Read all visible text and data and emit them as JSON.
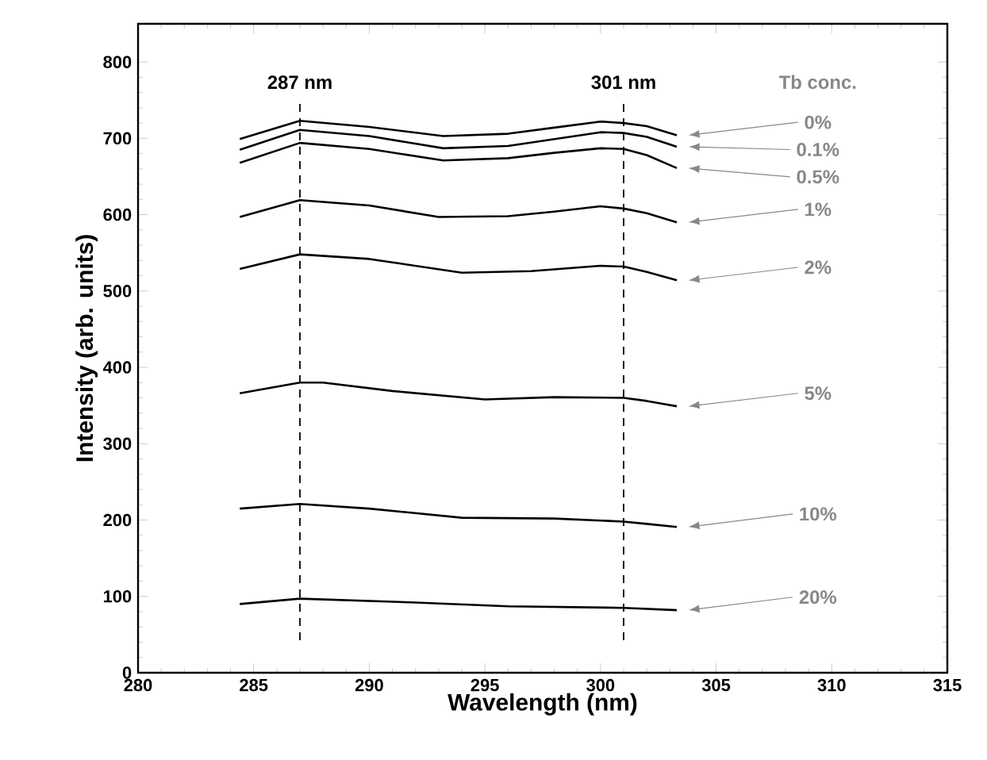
{
  "chart_data": {
    "type": "line",
    "xlabel": "Wavelength (nm)",
    "ylabel": "Intensity (arb. units)",
    "legend_title": "Tb conc.",
    "xlim": [
      280,
      315
    ],
    "xticks": [
      280,
      285,
      290,
      295,
      300,
      305,
      310,
      315
    ],
    "ylim": [
      0,
      850
    ],
    "yticks": [
      0,
      100,
      200,
      300,
      400,
      500,
      600,
      700,
      800
    ],
    "grid": false,
    "marker": "none",
    "line_style": "solid",
    "ref_lines": [
      {
        "axis": "x",
        "value": 287,
        "label": "287 nm",
        "line_style": "dashed",
        "color": "#000000"
      },
      {
        "axis": "x",
        "value": 301,
        "label": "301 nm",
        "line_style": "dashed",
        "color": "#000000"
      }
    ],
    "series": [
      {
        "name": "0%",
        "color": "#000000",
        "x": [
          284.4,
          287,
          290,
          293.2,
          296,
          298,
          300,
          301,
          302,
          303.3
        ],
        "values": [
          699,
          723,
          715,
          703,
          706,
          714,
          722,
          720,
          716,
          704
        ]
      },
      {
        "name": "0.1%",
        "color": "#000000",
        "x": [
          284.4,
          287,
          290,
          293.2,
          296,
          298,
          300,
          301,
          302,
          303.3
        ],
        "values": [
          685,
          711,
          703,
          687,
          690,
          699,
          708,
          707,
          702,
          689
        ]
      },
      {
        "name": "0.5%",
        "color": "#000000",
        "x": [
          284.4,
          287,
          290,
          293.2,
          296,
          298,
          300,
          301,
          302,
          303.3
        ],
        "values": [
          668,
          694,
          686,
          671,
          674,
          681,
          687,
          686,
          678,
          661
        ]
      },
      {
        "name": "1%",
        "color": "#000000",
        "x": [
          284.4,
          287,
          290,
          293,
          296,
          298,
          300,
          301,
          302,
          303.3
        ],
        "values": [
          597,
          619,
          612,
          597,
          598,
          604,
          611,
          608,
          602,
          590
        ]
      },
      {
        "name": "2%",
        "color": "#000000",
        "x": [
          284.4,
          287,
          290,
          294,
          297,
          300,
          301,
          302,
          303.3
        ],
        "values": [
          529,
          548,
          542,
          524,
          526,
          533,
          532,
          525,
          514
        ]
      },
      {
        "name": "5%",
        "color": "#000000",
        "x": [
          284.4,
          287,
          288,
          291,
          295,
          298,
          301,
          302,
          303.3
        ],
        "values": [
          366,
          380,
          380,
          369,
          358,
          361,
          360,
          356,
          349
        ]
      },
      {
        "name": "10%",
        "color": "#000000",
        "x": [
          284.4,
          287,
          290,
          294,
          298,
          301,
          302,
          303.3
        ],
        "values": [
          215,
          221,
          215,
          203,
          202,
          198,
          195,
          191
        ]
      },
      {
        "name": "20%",
        "color": "#000000",
        "x": [
          284.4,
          287,
          292,
          296,
          301,
          303.3
        ],
        "values": [
          90,
          97,
          92,
          87,
          85,
          82
        ]
      }
    ]
  }
}
